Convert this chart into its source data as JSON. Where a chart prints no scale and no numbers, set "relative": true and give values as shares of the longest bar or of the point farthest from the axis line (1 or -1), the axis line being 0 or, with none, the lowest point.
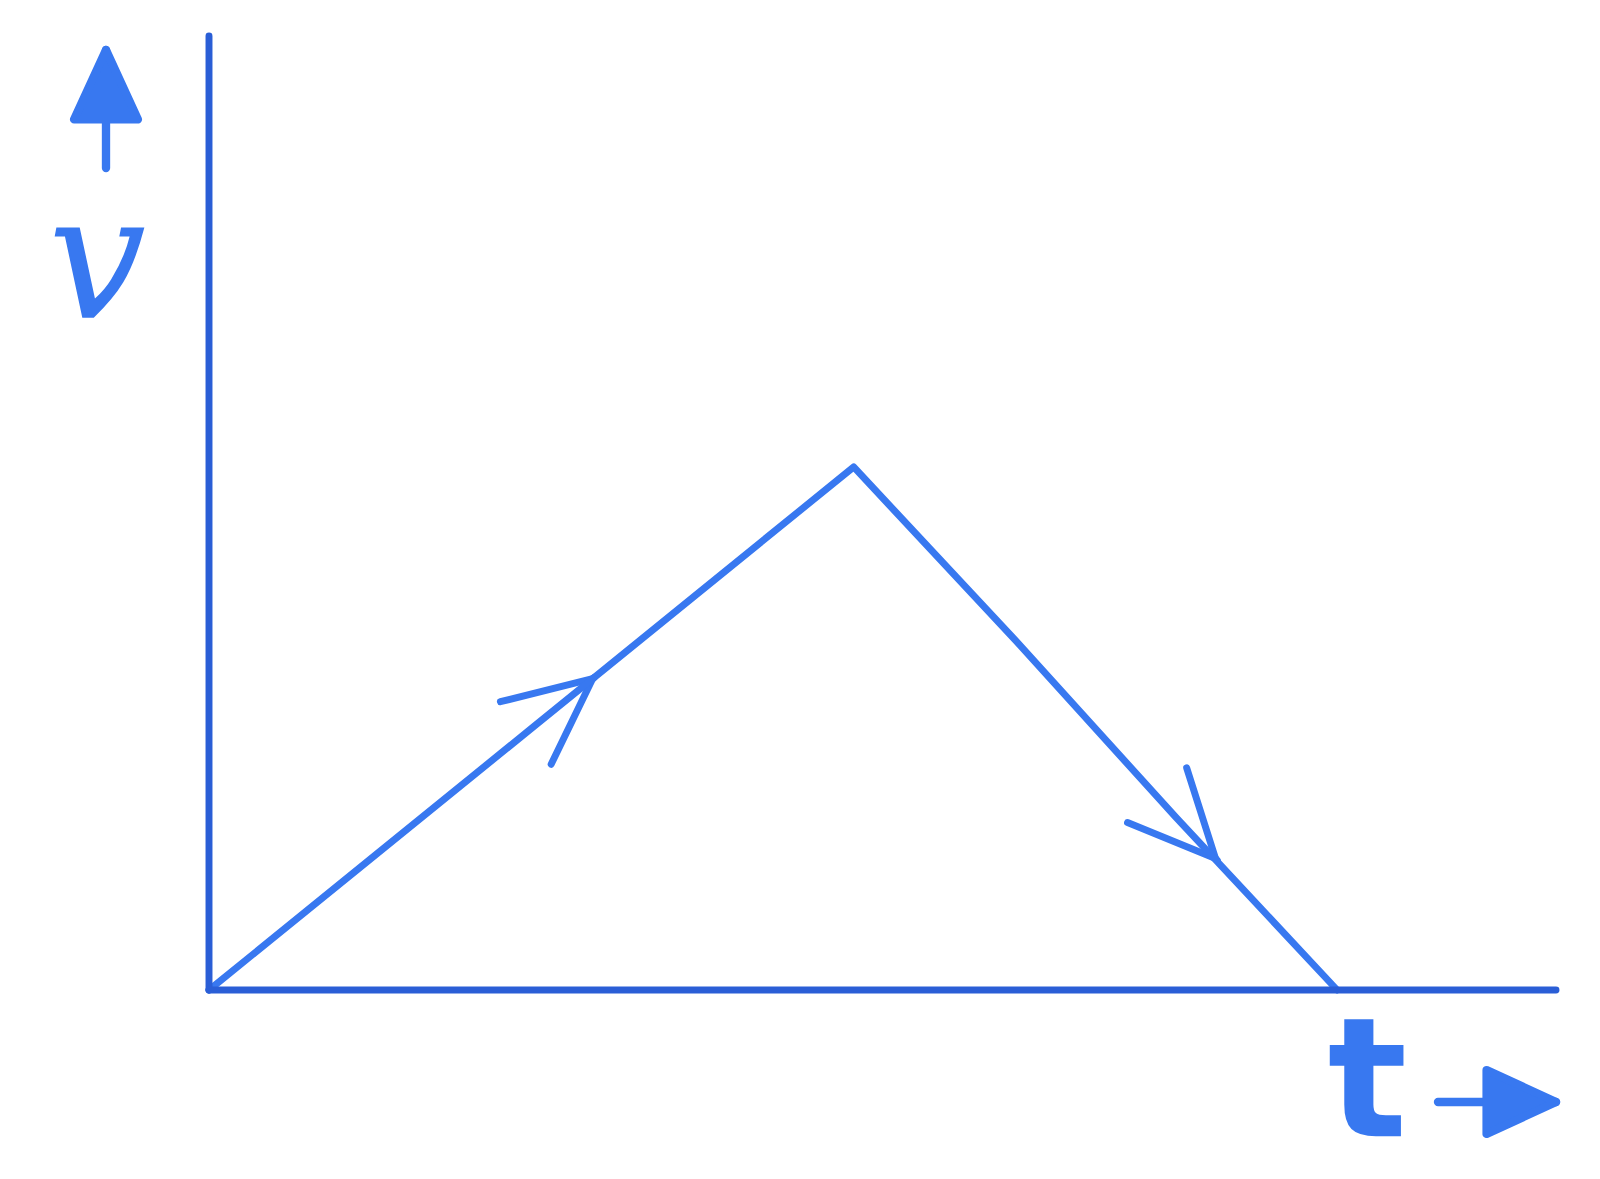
{
  "chart_data": {
    "type": "line",
    "xlabel": "t",
    "ylabel": "v",
    "categories": [
      null,
      null,
      null,
      null,
      null,
      null,
      null,
      null
    ],
    "values": [
      0,
      0.25,
      0.5,
      0.75,
      1,
      0.67,
      0.33,
      0
    ],
    "color": "#3878f0",
    "relative": true,
    "line_style": "solid"
  }
}
